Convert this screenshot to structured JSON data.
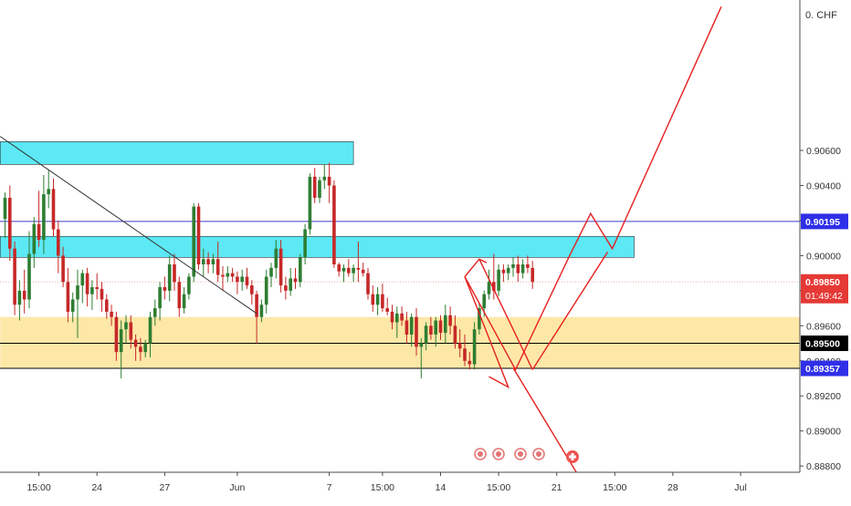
{
  "currency_label": "0. CHF",
  "chart_data": {
    "type": "candlestick",
    "instrument_currency": "CHF",
    "y_range": [
      0.8878,
      0.9138
    ],
    "x_range": [
      0,
      171
    ],
    "y_ticks": [
      "0.90600",
      "0.90400",
      "0.90200",
      "0.90000",
      "0.89800",
      "0.89600",
      "0.89400",
      "0.89200",
      "0.89000",
      "0.88800"
    ],
    "y_tick_values": [
      0.906,
      0.904,
      0.902,
      0.9,
      0.898,
      0.896,
      0.894,
      0.892,
      0.89,
      0.888
    ],
    "x_ticks": [
      {
        "label": "15:00",
        "i": 7
      },
      {
        "label": "24",
        "i": 19
      },
      {
        "label": "27",
        "i": 33
      },
      {
        "label": "Jun",
        "i": 48
      },
      {
        "label": "7",
        "i": 67
      },
      {
        "label": "15:00",
        "i": 78
      },
      {
        "label": "14",
        "i": 90
      },
      {
        "label": "15:00",
        "i": 102
      },
      {
        "label": "21",
        "i": 114
      },
      {
        "label": "15:00",
        "i": 126
      },
      {
        "label": "28",
        "i": 138
      },
      {
        "label": "Jul",
        "i": 152
      }
    ],
    "price_tags": [
      {
        "value": "0.90195",
        "price": 0.90195,
        "color": "#2f2fe8",
        "text_color": "#ffffff"
      },
      {
        "value": "0.89850",
        "sub": "01:49:42",
        "price": 0.8985,
        "color": "#e53935",
        "text_color": "#ffffff"
      },
      {
        "value": "0.89500",
        "price": 0.895,
        "color": "#000000",
        "text_color": "#ffffff"
      },
      {
        "value": "0.89357",
        "price": 0.89357,
        "color": "#2f2fe8",
        "text_color": "#ffffff"
      }
    ],
    "horizontal_lines": [
      {
        "price": 0.90195,
        "color": "#3f3fd0"
      },
      {
        "price": 0.8985,
        "color": "#e8b4a8",
        "dashed": true
      },
      {
        "price": 0.895,
        "color": "#000000"
      },
      {
        "price": 0.89357,
        "color": "#000000"
      }
    ],
    "zones": [
      {
        "from_i": -1,
        "to_i": 72,
        "top": 0.9065,
        "bottom": 0.9052,
        "color": "#5ce8f4"
      },
      {
        "from_i": -1,
        "to_i": 130,
        "top": 0.9011,
        "bottom": 0.8999,
        "color": "#5ce8f4"
      },
      {
        "from_i": -1,
        "to_i": 171,
        "top": 0.8965,
        "bottom": 0.89357,
        "color": "#fde8a8"
      }
    ],
    "trendline": {
      "from": [
        -1,
        0.9068
      ],
      "to": [
        52,
        0.8967
      ],
      "color": "#333333"
    },
    "projection_paths": [
      {
        "points": [
          [
            95,
            0.8988
          ],
          [
            104,
            0.8925
          ],
          [
            100,
            0.8931
          ]
        ],
        "color": "#e52020"
      },
      {
        "points": [
          [
            95,
            0.8988
          ],
          [
            98,
            0.8998
          ],
          [
            99.5,
            0.8996
          ]
        ],
        "color": "#e52020"
      },
      {
        "points": [
          [
            98,
            0.8998
          ],
          [
            109,
            0.8935
          ]
        ],
        "color": "#e52020"
      },
      {
        "points": [
          [
            95,
            0.8988
          ],
          [
            105.5,
            0.8935
          ],
          [
            116.5,
            0.8999
          ],
          [
            121,
            0.9024
          ],
          [
            125.5,
            0.9004
          ],
          [
            148,
            0.9142
          ]
        ],
        "color": "#e52020"
      },
      {
        "points": [
          [
            109,
            0.8935
          ],
          [
            124.5,
            0.9002
          ]
        ],
        "color": "#e52020"
      },
      {
        "points": [
          [
            105,
            0.8936
          ],
          [
            121,
            0.8863
          ]
        ],
        "color": "#e52020"
      }
    ],
    "candle_colors": {
      "up": "#2e7d32",
      "down": "#c62828"
    },
    "candles": [
      [
        0.9021,
        0.9036,
        0.901,
        0.9033
      ],
      [
        0.9033,
        0.904,
        0.8997,
        0.9004
      ],
      [
        0.9004,
        0.9008,
        0.8966,
        0.8972
      ],
      [
        0.8972,
        0.8986,
        0.8963,
        0.898
      ],
      [
        0.898,
        0.8992,
        0.8967,
        0.8975
      ],
      [
        0.8975,
        0.9014,
        0.897,
        0.9001
      ],
      [
        0.9001,
        0.9022,
        0.8993,
        0.9018
      ],
      [
        0.9018,
        0.9037,
        0.9005,
        0.9009
      ],
      [
        0.9009,
        0.9046,
        0.9001,
        0.9035
      ],
      [
        0.9035,
        0.9049,
        0.9027,
        0.9038
      ],
      [
        0.9038,
        0.9044,
        0.9011,
        0.9015
      ],
      [
        0.9015,
        0.902,
        0.899,
        0.9
      ],
      [
        0.9,
        0.9005,
        0.8982,
        0.8985
      ],
      [
        0.8985,
        0.8993,
        0.8962,
        0.8968
      ],
      [
        0.8968,
        0.8979,
        0.8962,
        0.8975
      ],
      [
        0.8975,
        0.8992,
        0.8953,
        0.8983
      ],
      [
        0.8983,
        0.8992,
        0.8973,
        0.899
      ],
      [
        0.899,
        0.8993,
        0.8971,
        0.8978
      ],
      [
        0.8978,
        0.8986,
        0.8969,
        0.8982
      ],
      [
        0.8982,
        0.899,
        0.8975,
        0.8981
      ],
      [
        0.8981,
        0.8985,
        0.8968,
        0.8975
      ],
      [
        0.8975,
        0.8978,
        0.8964,
        0.8968
      ],
      [
        0.8968,
        0.8972,
        0.896,
        0.8965
      ],
      [
        0.8965,
        0.8968,
        0.894,
        0.8945
      ],
      [
        0.8945,
        0.8963,
        0.893,
        0.8958
      ],
      [
        0.8958,
        0.8966,
        0.895,
        0.8962
      ],
      [
        0.8962,
        0.8966,
        0.8947,
        0.8952
      ],
      [
        0.8952,
        0.8955,
        0.894,
        0.8948
      ],
      [
        0.8948,
        0.8953,
        0.894,
        0.8945
      ],
      [
        0.8945,
        0.8952,
        0.8942,
        0.895
      ],
      [
        0.895,
        0.8968,
        0.8942,
        0.8965
      ],
      [
        0.8965,
        0.8975,
        0.896,
        0.897
      ],
      [
        0.897,
        0.8985,
        0.8963,
        0.8982
      ],
      [
        0.8982,
        0.8988,
        0.8975,
        0.898
      ],
      [
        0.898,
        0.9,
        0.8974,
        0.8995
      ],
      [
        0.8995,
        0.9001,
        0.898,
        0.8985
      ],
      [
        0.8985,
        0.8988,
        0.8965,
        0.897
      ],
      [
        0.897,
        0.8982,
        0.8967,
        0.8978
      ],
      [
        0.8978,
        0.899,
        0.8975,
        0.8988
      ],
      [
        0.8988,
        0.903,
        0.8985,
        0.9028
      ],
      [
        0.9028,
        0.903,
        0.8992,
        0.8995
      ],
      [
        0.8995,
        0.9004,
        0.8988,
        0.8998
      ],
      [
        0.8998,
        0.9002,
        0.899,
        0.8995
      ],
      [
        0.8995,
        0.9001,
        0.899,
        0.8998
      ],
      [
        0.8998,
        0.9008,
        0.8985,
        0.8989
      ],
      [
        0.8989,
        0.8994,
        0.898,
        0.8988
      ],
      [
        0.8988,
        0.8994,
        0.8985,
        0.899
      ],
      [
        0.899,
        0.8993,
        0.8985,
        0.8988
      ],
      [
        0.8988,
        0.8991,
        0.8978,
        0.8985
      ],
      [
        0.8985,
        0.8992,
        0.898,
        0.8988
      ],
      [
        0.8988,
        0.8993,
        0.8981,
        0.8983
      ],
      [
        0.8983,
        0.8986,
        0.8972,
        0.8978
      ],
      [
        0.8978,
        0.898,
        0.895,
        0.8965
      ],
      [
        0.8965,
        0.8975,
        0.8962,
        0.8972
      ],
      [
        0.8972,
        0.8992,
        0.8967,
        0.8988
      ],
      [
        0.8988,
        0.8996,
        0.8982,
        0.8993
      ],
      [
        0.8993,
        0.9009,
        0.8987,
        0.9004
      ],
      [
        0.9004,
        0.9009,
        0.8979,
        0.8983
      ],
      [
        0.8983,
        0.8988,
        0.8975,
        0.898
      ],
      [
        0.898,
        0.8993,
        0.8977,
        0.8987
      ],
      [
        0.8987,
        0.8993,
        0.8981,
        0.8985
      ],
      [
        0.8985,
        0.9001,
        0.8982,
        0.8999
      ],
      [
        0.8999,
        0.9018,
        0.8995,
        0.9015
      ],
      [
        0.9015,
        0.9047,
        0.9012,
        0.9045
      ],
      [
        0.9045,
        0.905,
        0.903,
        0.9033
      ],
      [
        0.9033,
        0.9045,
        0.903,
        0.9043
      ],
      [
        0.9043,
        0.9052,
        0.9038,
        0.9045
      ],
      [
        0.9045,
        0.9053,
        0.903,
        0.904
      ],
      [
        0.904,
        0.9043,
        0.8993,
        0.8995
      ],
      [
        0.8995,
        0.8996,
        0.8988,
        0.8991
      ],
      [
        0.8991,
        0.8995,
        0.8985,
        0.8993
      ],
      [
        0.8993,
        0.8998,
        0.8988,
        0.899
      ],
      [
        0.899,
        0.8995,
        0.8985,
        0.8993
      ],
      [
        0.8993,
        0.9008,
        0.8985,
        0.8992
      ],
      [
        0.8992,
        0.8996,
        0.8988,
        0.899
      ],
      [
        0.899,
        0.8993,
        0.8975,
        0.8978
      ],
      [
        0.8978,
        0.8983,
        0.8968,
        0.8972
      ],
      [
        0.8972,
        0.8982,
        0.8966,
        0.8978
      ],
      [
        0.8978,
        0.8984,
        0.8968,
        0.897
      ],
      [
        0.897,
        0.8976,
        0.8966,
        0.8968
      ],
      [
        0.8968,
        0.8972,
        0.8958,
        0.8962
      ],
      [
        0.8962,
        0.8971,
        0.8953,
        0.8967
      ],
      [
        0.8967,
        0.8971,
        0.896,
        0.8963
      ],
      [
        0.8963,
        0.8968,
        0.895,
        0.8955
      ],
      [
        0.8955,
        0.8967,
        0.8948,
        0.8965
      ],
      [
        0.8965,
        0.897,
        0.8943,
        0.8948
      ],
      [
        0.8948,
        0.8953,
        0.893,
        0.895
      ],
      [
        0.895,
        0.8962,
        0.8946,
        0.896
      ],
      [
        0.896,
        0.8965,
        0.8952,
        0.8955
      ],
      [
        0.8955,
        0.8965,
        0.8948,
        0.8963
      ],
      [
        0.8963,
        0.8966,
        0.8952,
        0.8956
      ],
      [
        0.8956,
        0.8972,
        0.895,
        0.8966
      ],
      [
        0.8966,
        0.8971,
        0.8955,
        0.896
      ],
      [
        0.896,
        0.8966,
        0.8947,
        0.895
      ],
      [
        0.895,
        0.8958,
        0.8942,
        0.8947
      ],
      [
        0.8947,
        0.8955,
        0.8937,
        0.894
      ],
      [
        0.894,
        0.8945,
        0.8935,
        0.8938
      ],
      [
        0.8938,
        0.8962,
        0.8935,
        0.8958
      ],
      [
        0.8958,
        0.8973,
        0.8955,
        0.897
      ],
      [
        0.897,
        0.898,
        0.8965,
        0.8978
      ],
      [
        0.8978,
        0.8992,
        0.8975,
        0.8985
      ],
      [
        0.8985,
        0.9001,
        0.8975,
        0.898
      ],
      [
        0.898,
        0.8995,
        0.8977,
        0.8992
      ],
      [
        0.8992,
        0.8995,
        0.8985,
        0.899
      ],
      [
        0.899,
        0.8995,
        0.8986,
        0.8993
      ],
      [
        0.8993,
        0.8999,
        0.8988,
        0.8995
      ],
      [
        0.8995,
        0.9,
        0.8985,
        0.899
      ],
      [
        0.899,
        0.8998,
        0.8987,
        0.8995
      ],
      [
        0.8995,
        0.9,
        0.899,
        0.8993
      ],
      [
        0.8993,
        0.8997,
        0.8981,
        0.8985
      ]
    ]
  }
}
